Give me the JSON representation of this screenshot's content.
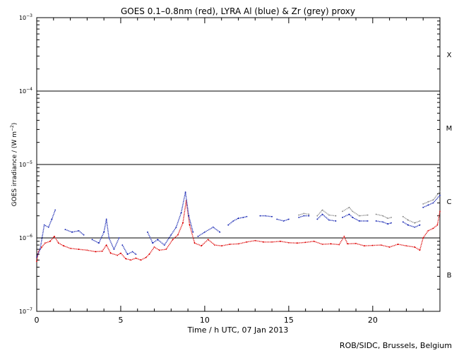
{
  "chart_data": {
    "type": "line",
    "title": "GOES 0.1–0.8nm (red), LYRA Al (blue) & Zr (grey) proxy",
    "xlabel": "Time / h UTC, 07 Jan 2013",
    "ylabel": "GOES irradiance / (W m⁻²)",
    "ylabel_main": "GOES irradiance / (W m",
    "ylabel_exp": "−2",
    "ylabel_end": ")",
    "credit": "ROB/SIDC, Brussels, Belgium",
    "y_scale": "log",
    "xlim": [
      0,
      24
    ],
    "ylim_exp": [
      -7,
      -3
    ],
    "x_ticks": [
      {
        "value": 0,
        "label": "0"
      },
      {
        "value": 5,
        "label": "5"
      },
      {
        "value": 10,
        "label": "10"
      },
      {
        "value": 15,
        "label": "15"
      },
      {
        "value": 20,
        "label": "20"
      }
    ],
    "y_ticks": [
      {
        "exp": -7,
        "label": "10",
        "sup": "−7"
      },
      {
        "exp": -6,
        "label": "10",
        "sup": "−6"
      },
      {
        "exp": -5,
        "label": "10",
        "sup": "−5"
      },
      {
        "exp": -4,
        "label": "10",
        "sup": "−4"
      },
      {
        "exp": -3,
        "label": "10",
        "sup": "−3"
      }
    ],
    "flare_lines_exp": [
      -4,
      -5,
      -6
    ],
    "flare_classes": [
      {
        "label": "X",
        "exp": -3.5
      },
      {
        "label": "M",
        "exp": -4.5
      },
      {
        "label": "C",
        "exp": -5.5
      },
      {
        "label": "B",
        "exp": -6.5
      }
    ],
    "series": [
      {
        "name": "GOES 0.1–0.8nm",
        "color": "#dd0000",
        "points": [
          [
            0.0,
            4.8e-07
          ],
          [
            0.1,
            6.5e-07
          ],
          [
            0.3,
            7.5e-07
          ],
          [
            0.5,
            8.5e-07
          ],
          [
            0.8,
            9e-07
          ],
          [
            1.05,
            1.05e-06
          ],
          [
            1.3,
            8.5e-07
          ],
          [
            1.6,
            7.8e-07
          ],
          [
            2.0,
            7.2e-07
          ],
          [
            2.5,
            7e-07
          ],
          [
            3.0,
            6.8e-07
          ],
          [
            3.5,
            6.5e-07
          ],
          [
            3.9,
            6.6e-07
          ],
          [
            4.15,
            8e-07
          ],
          [
            4.4,
            6.2e-07
          ],
          [
            4.8,
            5.8e-07
          ],
          [
            5.0,
            6.2e-07
          ],
          [
            5.3,
            5.2e-07
          ],
          [
            5.6,
            5e-07
          ],
          [
            5.9,
            5.3e-07
          ],
          [
            6.2,
            5e-07
          ],
          [
            6.5,
            5.4e-07
          ],
          [
            6.7,
            6e-07
          ],
          [
            7.0,
            7.5e-07
          ],
          [
            7.3,
            6.8e-07
          ],
          [
            7.7,
            7e-07
          ],
          [
            8.1,
            9.5e-07
          ],
          [
            8.4,
            1.1e-06
          ],
          [
            8.7,
            1.6e-06
          ],
          [
            8.9,
            3.2e-06
          ],
          [
            9.1,
            1.5e-06
          ],
          [
            9.4,
            8.5e-07
          ],
          [
            9.8,
            7.8e-07
          ],
          [
            10.2,
            9.5e-07
          ],
          [
            10.6,
            8e-07
          ],
          [
            11.0,
            7.8e-07
          ],
          [
            11.5,
            8.2e-07
          ],
          [
            12.0,
            8.3e-07
          ],
          [
            12.5,
            8.8e-07
          ],
          [
            13.0,
            9.2e-07
          ],
          [
            13.5,
            8.8e-07
          ],
          [
            14.0,
            8.8e-07
          ],
          [
            14.5,
            9e-07
          ],
          [
            15.0,
            8.6e-07
          ],
          [
            15.5,
            8.5e-07
          ],
          [
            16.0,
            8.7e-07
          ],
          [
            16.5,
            9e-07
          ],
          [
            17.0,
            8.2e-07
          ],
          [
            17.5,
            8.3e-07
          ],
          [
            18.0,
            8.1e-07
          ],
          [
            18.3,
            1.05e-06
          ],
          [
            18.5,
            8.3e-07
          ],
          [
            19.0,
            8.4e-07
          ],
          [
            19.5,
            7.8e-07
          ],
          [
            20.0,
            7.9e-07
          ],
          [
            20.5,
            8e-07
          ],
          [
            21.0,
            7.5e-07
          ],
          [
            21.5,
            8.2e-07
          ],
          [
            22.0,
            7.8e-07
          ],
          [
            22.5,
            7.5e-07
          ],
          [
            22.8,
            6.8e-07
          ],
          [
            23.0,
            1e-06
          ],
          [
            23.3,
            1.25e-06
          ],
          [
            23.6,
            1.35e-06
          ],
          [
            23.85,
            1.5e-06
          ],
          [
            24.0,
            2.3e-06
          ]
        ]
      },
      {
        "name": "LYRA Al proxy",
        "color": "#1020b0",
        "points": [
          [
            0.0,
            5.5e-07
          ],
          [
            0.2,
            7e-07
          ],
          [
            0.45,
            1.5e-06
          ],
          [
            0.7,
            1.4e-06
          ],
          [
            0.9,
            1.8e-06
          ],
          [
            1.1,
            2.4e-06
          ],
          null,
          [
            1.7,
            1.3e-06
          ],
          [
            2.1,
            1.2e-06
          ],
          [
            2.5,
            1.25e-06
          ],
          [
            2.8,
            1.1e-06
          ],
          null,
          [
            3.3,
            9.5e-07
          ],
          [
            3.7,
            8.5e-07
          ],
          [
            4.0,
            1.2e-06
          ],
          [
            4.15,
            1.8e-06
          ],
          [
            4.3,
            1e-06
          ],
          [
            4.6,
            7e-07
          ],
          [
            4.9,
            1e-06
          ],
          null,
          [
            5.1,
            8e-07
          ],
          [
            5.4,
            6e-07
          ],
          [
            5.7,
            6.5e-07
          ],
          [
            5.9,
            6e-07
          ],
          null,
          [
            6.6,
            1.2e-06
          ],
          [
            6.9,
            8.5e-07
          ],
          [
            7.2,
            9.5e-07
          ],
          [
            7.6,
            8e-07
          ],
          [
            8.0,
            1.1e-06
          ],
          [
            8.3,
            1.4e-06
          ],
          [
            8.6,
            2.2e-06
          ],
          [
            8.85,
            4.2e-06
          ],
          [
            9.05,
            2e-06
          ],
          [
            9.3,
            1.2e-06
          ],
          null,
          [
            9.6,
            1.05e-06
          ],
          [
            10.0,
            1.2e-06
          ],
          [
            10.5,
            1.4e-06
          ],
          [
            10.9,
            1.2e-06
          ],
          null,
          [
            11.4,
            1.5e-06
          ],
          [
            11.7,
            1.7e-06
          ],
          [
            12.0,
            1.85e-06
          ],
          [
            12.3,
            1.9e-06
          ],
          [
            12.5,
            1.95e-06
          ],
          null,
          [
            13.3,
            2e-06
          ],
          [
            13.6,
            2e-06
          ],
          [
            14.0,
            1.95e-06
          ],
          null,
          [
            14.3,
            1.8e-06
          ],
          [
            14.7,
            1.7e-06
          ],
          [
            15.0,
            1.8e-06
          ],
          null,
          [
            15.6,
            1.9e-06
          ],
          [
            15.9,
            2e-06
          ],
          [
            16.2,
            2e-06
          ],
          null,
          [
            16.7,
            1.8e-06
          ],
          [
            17.0,
            2.1e-06
          ],
          [
            17.4,
            1.75e-06
          ],
          [
            17.8,
            1.7e-06
          ],
          null,
          [
            18.2,
            1.9e-06
          ],
          [
            18.6,
            2.1e-06
          ],
          [
            18.8,
            1.9e-06
          ],
          [
            19.2,
            1.7e-06
          ],
          [
            19.7,
            1.7e-06
          ],
          null,
          [
            20.2,
            1.7e-06
          ],
          [
            20.6,
            1.65e-06
          ],
          [
            20.9,
            1.55e-06
          ],
          [
            21.1,
            1.6e-06
          ],
          null,
          [
            21.8,
            1.65e-06
          ],
          [
            22.1,
            1.5e-06
          ],
          [
            22.5,
            1.4e-06
          ],
          [
            22.8,
            1.5e-06
          ],
          null,
          [
            23.0,
            2.6e-06
          ],
          [
            23.3,
            2.8e-06
          ],
          [
            23.6,
            3e-06
          ],
          [
            24.0,
            3.8e-06
          ]
        ]
      },
      {
        "name": "LYRA Zr proxy",
        "color": "#888888",
        "points": [
          [
            15.6,
            2.05e-06
          ],
          [
            15.9,
            2.15e-06
          ],
          [
            16.2,
            2.1e-06
          ],
          null,
          [
            16.7,
            2e-06
          ],
          [
            17.0,
            2.4e-06
          ],
          [
            17.4,
            2.05e-06
          ],
          [
            17.8,
            2e-06
          ],
          null,
          [
            18.2,
            2.3e-06
          ],
          [
            18.6,
            2.6e-06
          ],
          [
            18.8,
            2.3e-06
          ],
          [
            19.2,
            2e-06
          ],
          [
            19.7,
            2.05e-06
          ],
          null,
          [
            20.2,
            2.1e-06
          ],
          [
            20.6,
            2e-06
          ],
          [
            20.9,
            1.85e-06
          ],
          [
            21.1,
            1.9e-06
          ],
          null,
          [
            21.8,
            1.95e-06
          ],
          [
            22.1,
            1.75e-06
          ],
          [
            22.5,
            1.6e-06
          ],
          [
            22.8,
            1.7e-06
          ],
          null,
          [
            23.0,
            2.9e-06
          ],
          [
            23.3,
            3.1e-06
          ],
          [
            23.6,
            3.3e-06
          ],
          [
            24.0,
            4.3e-06
          ]
        ]
      }
    ]
  }
}
